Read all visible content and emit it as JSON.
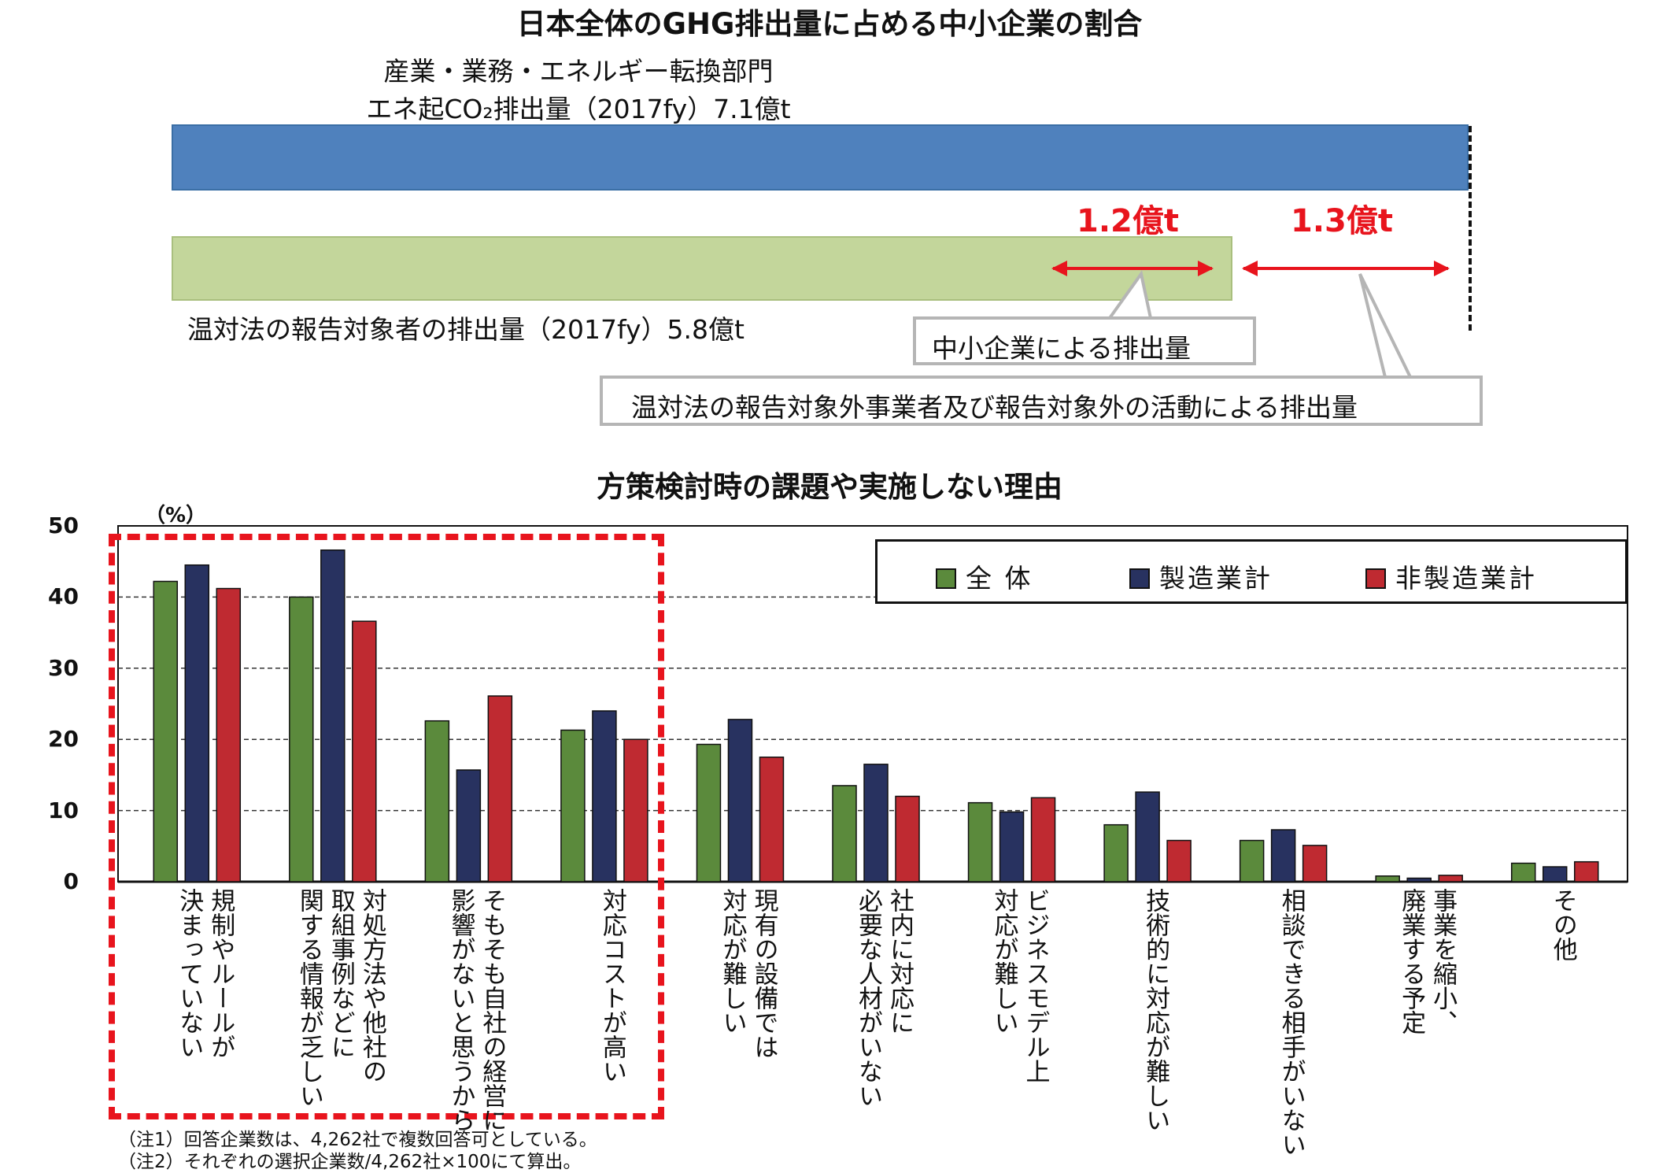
{
  "top": {
    "title": "日本全体のGHG排出量に占める中小企業の割合",
    "subtitle_line1": "産業・業務・エネルギー転換部門",
    "subtitle_line2": "エネ起CO₂排出量（2017fy）7.1億t",
    "green_label": "温対法の報告対象者の排出量（2017fy）5.8億t",
    "red_label_1": "1.2億t",
    "red_label_2": "1.3億t",
    "callout_1": "中小企業による排出量",
    "callout_2": "温対法の報告対象外事業者及び報告対象外の活動による排出量",
    "colors": {
      "blue_bar": "#4f81bd",
      "green_bar": "#c3d69b",
      "accent_red": "#e8141d"
    },
    "values": {
      "total": 7.1,
      "reported": 5.8,
      "sme": 1.2,
      "unreported": 1.3,
      "unit": "億t"
    }
  },
  "chart_data": {
    "type": "bar",
    "title": "方策検討時の課題や実施しない理由",
    "ylabel": "（%）",
    "ylim": [
      0,
      50
    ],
    "yticks": [
      0,
      10,
      20,
      30,
      40,
      50
    ],
    "grid": true,
    "legend_position": "top-right",
    "categories": [
      "規制やルールが\n決まっていない",
      "対処方法や他社の\n取組事例などに\n関する情報が乏しい",
      "そもそも自社の経営に\n影響がないと思うから",
      "対応コストが高い",
      "現有の設備では\n対応が難しい",
      "社内に対応に\n必要な人材がいない",
      "ビジネスモデル上\n対応が難しい",
      "技術的に対応が難しい",
      "相談できる相手がいない",
      "事業を縮小、\n廃業する予定",
      "その他"
    ],
    "series": [
      {
        "name": "全 体",
        "color": "#5b8a3c",
        "values": [
          42.2,
          40.0,
          22.6,
          21.3,
          19.3,
          13.5,
          11.1,
          8.0,
          5.8,
          0.8,
          2.6
        ]
      },
      {
        "name": "製造業計",
        "color": "#283260",
        "values": [
          44.5,
          46.6,
          15.7,
          24.0,
          22.8,
          16.5,
          9.8,
          12.6,
          7.3,
          0.5,
          2.1
        ]
      },
      {
        "name": "非製造業計",
        "color": "#bf2a31",
        "values": [
          41.2,
          36.6,
          26.1,
          20.0,
          17.5,
          12.0,
          11.8,
          5.8,
          5.1,
          0.9,
          2.8
        ]
      }
    ],
    "highlighted_categories": 4
  },
  "notes": [
    "（注1）回答企業数は、4,262社で複数回答可としている。",
    "（注2）それぞれの選択企業数/4,262社×100にて算出。"
  ]
}
